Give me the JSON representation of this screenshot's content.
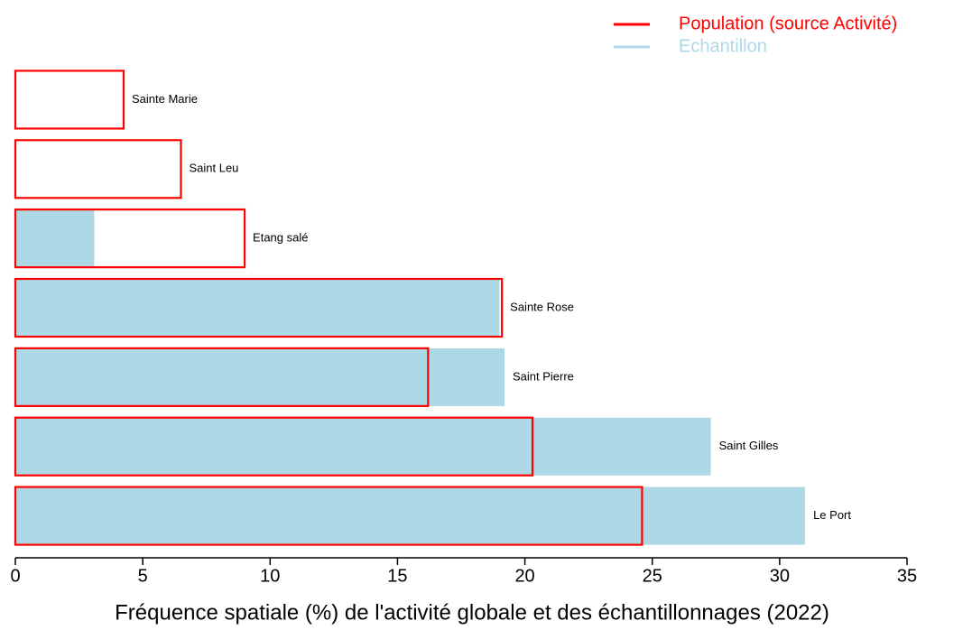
{
  "chart_data": {
    "type": "bar",
    "orientation": "horizontal",
    "x_label": "Fréquence spatiale (%) de l'activité globale et des échantillonnages (2022)",
    "categories": [
      "Sainte Marie",
      "Saint Leu",
      "Etang salé",
      "Sainte Rose",
      "Saint Pierre",
      "Saint Gilles",
      "Le Port"
    ],
    "series": [
      {
        "name": "Population (source Activité)",
        "color": "#ff0000",
        "style": "outline",
        "values": [
          4.25,
          6.5,
          9.0,
          19.1,
          16.2,
          20.3,
          24.6
        ]
      },
      {
        "name": "Echantillon",
        "color": "#add8e6",
        "style": "fill",
        "values": [
          0,
          0,
          3.1,
          19.0,
          19.2,
          27.3,
          31.0
        ]
      }
    ],
    "xlim": [
      0,
      35
    ],
    "xticks": [
      0,
      5,
      10,
      15,
      20,
      25,
      30,
      35
    ]
  }
}
